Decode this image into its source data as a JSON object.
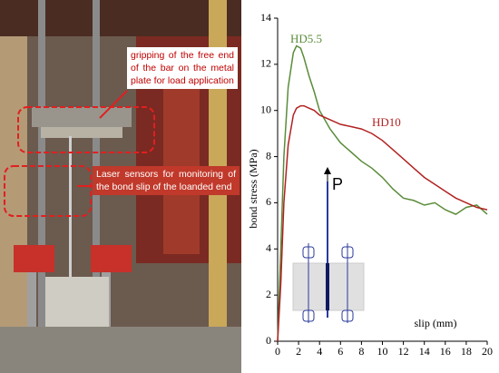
{
  "annotations": [
    "gripping of the free end of the bar on the metal plate for load application",
    "Laser sensors for monitoring of the bond slip of the loanded end"
  ],
  "chart_data": {
    "type": "line",
    "xlabel": "slip (mm)",
    "ylabel": "bond stress (MPa)",
    "inset_label": "P",
    "x": [
      0,
      0.3,
      0.6,
      1,
      1.5,
      1.8,
      2.2,
      2.5,
      3,
      3.5,
      4,
      5,
      6,
      7,
      8,
      9,
      10,
      11,
      12,
      13,
      14,
      15,
      16,
      17,
      18,
      19,
      20
    ],
    "series": [
      {
        "name": "HD5.5",
        "color": "#5b8c3a",
        "values": [
          0,
          4,
          8,
          11,
          12.5,
          12.8,
          12.7,
          12.3,
          11.5,
          10.8,
          10,
          9.2,
          8.6,
          8.2,
          7.8,
          7.5,
          7.1,
          6.6,
          6.2,
          6.1,
          5.9,
          6.0,
          5.7,
          5.5,
          5.8,
          5.9,
          5.5
        ]
      },
      {
        "name": "HD10",
        "color": "#b22222",
        "values": [
          0,
          2.5,
          6,
          8.5,
          9.8,
          10.1,
          10.2,
          10.2,
          10.1,
          10,
          9.8,
          9.6,
          9.4,
          9.3,
          9.2,
          9.0,
          8.7,
          8.3,
          7.9,
          7.5,
          7.1,
          6.8,
          6.5,
          6.2,
          6.0,
          5.8,
          5.7
        ]
      }
    ],
    "xlim": [
      0,
      20
    ],
    "xticks": [
      0,
      2,
      4,
      6,
      8,
      10,
      12,
      14,
      16,
      18,
      20
    ],
    "ylim": [
      0,
      14
    ],
    "yticks": [
      0,
      2,
      4,
      6,
      8,
      10,
      12,
      14
    ]
  }
}
